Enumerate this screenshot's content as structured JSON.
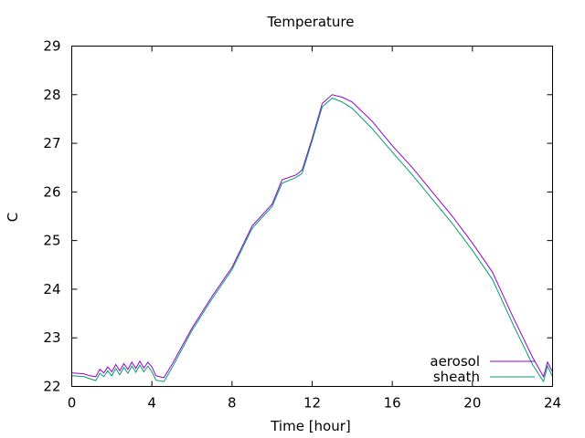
{
  "chart_data": {
    "type": "line",
    "title": "Temperature",
    "xlabel": "Time [hour]",
    "ylabel": "C",
    "xlim": [
      0,
      24
    ],
    "ylim": [
      22,
      29
    ],
    "x_ticks": [
      0,
      4,
      8,
      12,
      16,
      20,
      24
    ],
    "y_ticks": [
      22,
      23,
      24,
      25,
      26,
      27,
      28,
      29
    ],
    "grid": false,
    "legend_position": "bottom-right",
    "series": [
      {
        "name": "aerosol",
        "color": "#9400d3",
        "points": [
          [
            0,
            22.28
          ],
          [
            0.3,
            22.27
          ],
          [
            0.6,
            22.26
          ],
          [
            0.9,
            22.22
          ],
          [
            1.2,
            22.2
          ],
          [
            1.4,
            22.35
          ],
          [
            1.6,
            22.28
          ],
          [
            1.8,
            22.4
          ],
          [
            2.0,
            22.3
          ],
          [
            2.2,
            22.45
          ],
          [
            2.4,
            22.32
          ],
          [
            2.6,
            22.47
          ],
          [
            2.8,
            22.35
          ],
          [
            3.0,
            22.5
          ],
          [
            3.2,
            22.37
          ],
          [
            3.4,
            22.52
          ],
          [
            3.6,
            22.38
          ],
          [
            3.8,
            22.5
          ],
          [
            4.0,
            22.4
          ],
          [
            4.2,
            22.22
          ],
          [
            4.6,
            22.18
          ],
          [
            5.0,
            22.45
          ],
          [
            6.0,
            23.2
          ],
          [
            7.0,
            23.85
          ],
          [
            8.0,
            24.45
          ],
          [
            9.0,
            25.3
          ],
          [
            10.0,
            25.75
          ],
          [
            10.5,
            26.25
          ],
          [
            11.2,
            26.35
          ],
          [
            11.5,
            26.45
          ],
          [
            12.0,
            27.1
          ],
          [
            12.5,
            27.82
          ],
          [
            13.0,
            28.0
          ],
          [
            13.5,
            27.95
          ],
          [
            14.0,
            27.85
          ],
          [
            15.0,
            27.45
          ],
          [
            16.0,
            26.95
          ],
          [
            17.0,
            26.5
          ],
          [
            18.0,
            26.0
          ],
          [
            19.0,
            25.5
          ],
          [
            20.0,
            24.95
          ],
          [
            21.0,
            24.35
          ],
          [
            22.0,
            23.45
          ],
          [
            23.0,
            22.6
          ],
          [
            23.55,
            22.2
          ],
          [
            23.75,
            22.5
          ],
          [
            24.0,
            22.3
          ]
        ]
      },
      {
        "name": "sheath",
        "color": "#009e73",
        "points": [
          [
            0,
            22.22
          ],
          [
            0.3,
            22.21
          ],
          [
            0.6,
            22.2
          ],
          [
            0.9,
            22.16
          ],
          [
            1.2,
            22.12
          ],
          [
            1.4,
            22.27
          ],
          [
            1.6,
            22.2
          ],
          [
            1.8,
            22.32
          ],
          [
            2.0,
            22.22
          ],
          [
            2.2,
            22.37
          ],
          [
            2.4,
            22.24
          ],
          [
            2.6,
            22.39
          ],
          [
            2.8,
            22.27
          ],
          [
            3.0,
            22.42
          ],
          [
            3.2,
            22.29
          ],
          [
            3.4,
            22.44
          ],
          [
            3.6,
            22.3
          ],
          [
            3.8,
            22.42
          ],
          [
            4.0,
            22.3
          ],
          [
            4.2,
            22.13
          ],
          [
            4.6,
            22.1
          ],
          [
            5.0,
            22.38
          ],
          [
            6.0,
            23.15
          ],
          [
            7.0,
            23.8
          ],
          [
            8.0,
            24.4
          ],
          [
            9.0,
            25.25
          ],
          [
            10.0,
            25.7
          ],
          [
            10.5,
            26.18
          ],
          [
            11.2,
            26.3
          ],
          [
            11.5,
            26.38
          ],
          [
            12.0,
            27.05
          ],
          [
            12.5,
            27.75
          ],
          [
            13.0,
            27.93
          ],
          [
            13.5,
            27.85
          ],
          [
            14.0,
            27.72
          ],
          [
            15.0,
            27.3
          ],
          [
            16.0,
            26.82
          ],
          [
            17.0,
            26.35
          ],
          [
            18.0,
            25.85
          ],
          [
            19.0,
            25.35
          ],
          [
            20.0,
            24.8
          ],
          [
            21.0,
            24.2
          ],
          [
            22.0,
            23.3
          ],
          [
            23.0,
            22.45
          ],
          [
            23.55,
            22.1
          ],
          [
            23.75,
            22.42
          ],
          [
            24.0,
            22.2
          ]
        ]
      }
    ]
  }
}
